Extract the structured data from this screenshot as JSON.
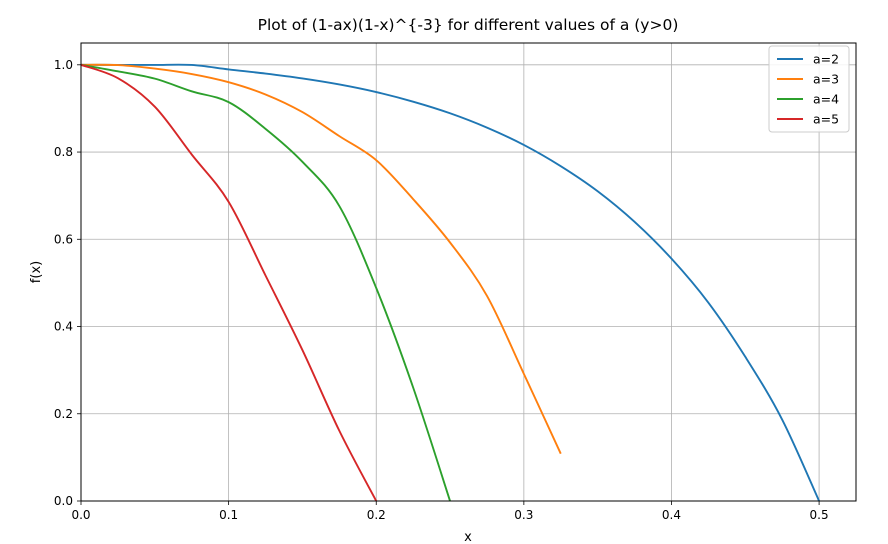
{
  "chart_data": {
    "type": "line",
    "title": "Plot of (1-ax)(1-x)^{-3} for different values of a (y>0)",
    "xlabel": "x",
    "ylabel": "f(x)",
    "xlim": [
      0.0,
      0.525
    ],
    "ylim": [
      0.0,
      1.05
    ],
    "xticks": [
      "0.0",
      "0.1",
      "0.2",
      "0.3",
      "0.4",
      "0.5"
    ],
    "yticks": [
      "0.0",
      "0.2",
      "0.4",
      "0.6",
      "0.8",
      "1.0"
    ],
    "grid": true,
    "legend_position": "top-right",
    "x": [
      0.0,
      0.025,
      0.05,
      0.075,
      0.1,
      0.125,
      0.15,
      0.175,
      0.2,
      0.225,
      0.25,
      0.275,
      0.3,
      0.325,
      0.35,
      0.375,
      0.4,
      0.425,
      0.45,
      0.475,
      0.5
    ],
    "series": [
      {
        "name": "a=2",
        "color": "#1f77b4",
        "values": [
          1.0,
          0.9998,
          0.9997,
          0.9996,
          0.9894,
          0.9799,
          0.9687,
          0.9549,
          0.9375,
          0.9155,
          0.8889,
          0.856,
          0.8163,
          0.7676,
          0.7101,
          0.64,
          0.5556,
          0.4547,
          0.3306,
          0.1865,
          0.0
        ]
      },
      {
        "name": "a=3",
        "color": "#ff7f0e",
        "values": [
          1.0,
          0.9993,
          0.9913,
          0.9789,
          0.9602,
          0.932,
          0.8916,
          0.8365,
          0.7813,
          0.6921,
          0.5926,
          0.4704,
          0.2915,
          0.1085,
          null,
          null,
          null,
          null,
          null,
          null,
          null
        ]
      },
      {
        "name": "a=4",
        "color": "#2ca02c",
        "values": [
          1.0,
          0.985,
          0.9683,
          0.9392,
          0.9145,
          0.8532,
          0.7776,
          0.6762,
          0.4883,
          0.2602,
          0.0,
          null,
          null,
          null,
          null,
          null,
          null,
          null,
          null,
          null,
          null
        ]
      },
      {
        "name": "a=5",
        "color": "#d62728",
        "values": [
          1.0,
          0.9694,
          0.904,
          0.7944,
          0.6859,
          0.517,
          0.346,
          0.161,
          0.0,
          null,
          null,
          null,
          null,
          null,
          null,
          null,
          null,
          null,
          null,
          null,
          null
        ]
      }
    ]
  }
}
